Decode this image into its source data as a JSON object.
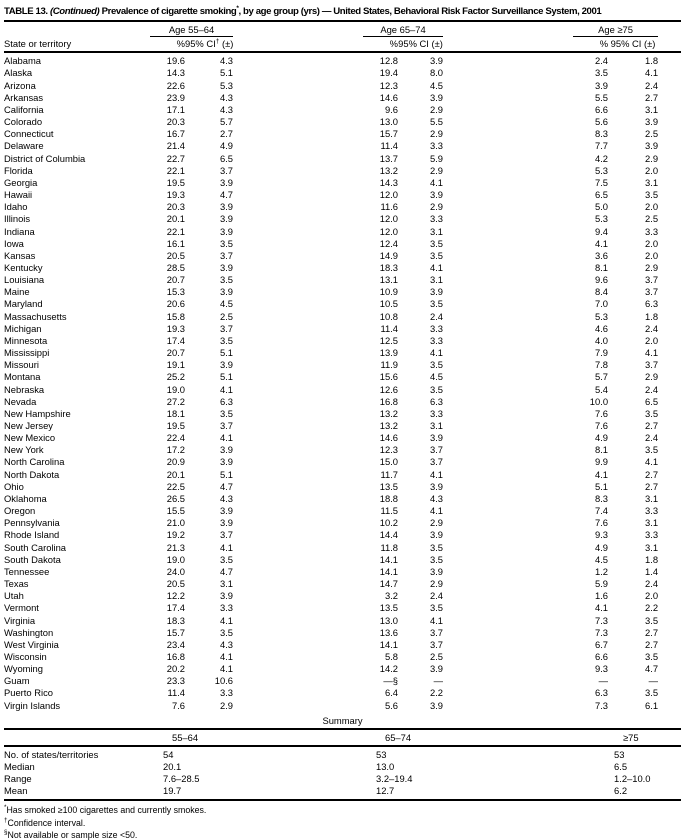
{
  "title": {
    "table_no": "TABLE 13. ",
    "continued": "(Continued)",
    "body_pre": " Prevalence of cigarette smoking",
    "asterisk": "*",
    "body_post": ", by age group (yrs) — United States, Behavioral Risk Factor Surveillance System, 2001"
  },
  "header": {
    "state_col": "State or territory",
    "pct": "%",
    "ci_pre": "95% CI",
    "ci_dagger": "†",
    "ci_post": " (±)",
    "ci_plain": "95% CI (±)",
    "groups": [
      "Age 55–64",
      "Age 65–74",
      "Age ≥75"
    ]
  },
  "rows": [
    {
      "state": "Alabama",
      "v": [
        "19.6",
        "4.3",
        "12.8",
        "3.9",
        "2.4",
        "1.8"
      ]
    },
    {
      "state": "Alaska",
      "v": [
        "14.3",
        "5.1",
        "19.4",
        "8.0",
        "3.5",
        "4.1"
      ]
    },
    {
      "state": "Arizona",
      "v": [
        "22.6",
        "5.3",
        "12.3",
        "4.5",
        "3.9",
        "2.4"
      ]
    },
    {
      "state": "Arkansas",
      "v": [
        "23.9",
        "4.3",
        "14.6",
        "3.9",
        "5.5",
        "2.7"
      ]
    },
    {
      "state": "California",
      "v": [
        "17.1",
        "4.3",
        "9.6",
        "2.9",
        "6.6",
        "3.1"
      ]
    },
    {
      "state": "Colorado",
      "v": [
        "20.3",
        "5.7",
        "13.0",
        "5.5",
        "5.6",
        "3.9"
      ]
    },
    {
      "state": "Connecticut",
      "v": [
        "16.7",
        "2.7",
        "15.7",
        "2.9",
        "8.3",
        "2.5"
      ]
    },
    {
      "state": "Delaware",
      "v": [
        "21.4",
        "4.9",
        "11.4",
        "3.3",
        "7.7",
        "3.9"
      ]
    },
    {
      "state": "District of Columbia",
      "v": [
        "22.7",
        "6.5",
        "13.7",
        "5.9",
        "4.2",
        "2.9"
      ]
    },
    {
      "state": "Florida",
      "v": [
        "22.1",
        "3.7",
        "13.2",
        "2.9",
        "5.3",
        "2.0"
      ]
    },
    {
      "state": "Georgia",
      "v": [
        "19.5",
        "3.9",
        "14.3",
        "4.1",
        "7.5",
        "3.1"
      ]
    },
    {
      "state": "Hawaii",
      "v": [
        "19.3",
        "4.7",
        "12.0",
        "3.9",
        "6.5",
        "3.5"
      ]
    },
    {
      "state": "Idaho",
      "v": [
        "20.3",
        "3.9",
        "11.6",
        "2.9",
        "5.0",
        "2.0"
      ]
    },
    {
      "state": "Illinois",
      "v": [
        "20.1",
        "3.9",
        "12.0",
        "3.3",
        "5.3",
        "2.5"
      ]
    },
    {
      "state": "Indiana",
      "v": [
        "22.1",
        "3.9",
        "12.0",
        "3.1",
        "9.4",
        "3.3"
      ]
    },
    {
      "state": "Iowa",
      "v": [
        "16.1",
        "3.5",
        "12.4",
        "3.5",
        "4.1",
        "2.0"
      ]
    },
    {
      "state": "Kansas",
      "v": [
        "20.5",
        "3.7",
        "14.9",
        "3.5",
        "3.6",
        "2.0"
      ]
    },
    {
      "state": "Kentucky",
      "v": [
        "28.5",
        "3.9",
        "18.3",
        "4.1",
        "8.1",
        "2.9"
      ]
    },
    {
      "state": "Louisiana",
      "v": [
        "20.7",
        "3.5",
        "13.1",
        "3.1",
        "9.6",
        "3.7"
      ]
    },
    {
      "state": "Maine",
      "v": [
        "15.3",
        "3.9",
        "10.9",
        "3.9",
        "8.4",
        "3.7"
      ]
    },
    {
      "state": "Maryland",
      "v": [
        "20.6",
        "4.5",
        "10.5",
        "3.5",
        "7.0",
        "6.3"
      ]
    },
    {
      "state": "Massachusetts",
      "v": [
        "15.8",
        "2.5",
        "10.8",
        "2.4",
        "5.3",
        "1.8"
      ]
    },
    {
      "state": "Michigan",
      "v": [
        "19.3",
        "3.7",
        "11.4",
        "3.3",
        "4.6",
        "2.4"
      ]
    },
    {
      "state": "Minnesota",
      "v": [
        "17.4",
        "3.5",
        "12.5",
        "3.3",
        "4.0",
        "2.0"
      ]
    },
    {
      "state": "Mississippi",
      "v": [
        "20.7",
        "5.1",
        "13.9",
        "4.1",
        "7.9",
        "4.1"
      ]
    },
    {
      "state": "Missouri",
      "v": [
        "19.1",
        "3.9",
        "11.9",
        "3.5",
        "7.8",
        "3.7"
      ]
    },
    {
      "state": "Montana",
      "v": [
        "25.2",
        "5.1",
        "15.6",
        "4.5",
        "5.7",
        "2.9"
      ]
    },
    {
      "state": "Nebraska",
      "v": [
        "19.0",
        "4.1",
        "12.6",
        "3.5",
        "5.4",
        "2.4"
      ]
    },
    {
      "state": "Nevada",
      "v": [
        "27.2",
        "6.3",
        "16.8",
        "6.3",
        "10.0",
        "6.5"
      ]
    },
    {
      "state": "New Hampshire",
      "v": [
        "18.1",
        "3.5",
        "13.2",
        "3.3",
        "7.6",
        "3.5"
      ]
    },
    {
      "state": "New Jersey",
      "v": [
        "19.5",
        "3.7",
        "13.2",
        "3.1",
        "7.6",
        "2.7"
      ]
    },
    {
      "state": "New Mexico",
      "v": [
        "22.4",
        "4.1",
        "14.6",
        "3.9",
        "4.9",
        "2.4"
      ]
    },
    {
      "state": "New York",
      "v": [
        "17.2",
        "3.9",
        "12.3",
        "3.7",
        "8.1",
        "3.5"
      ]
    },
    {
      "state": "North Carolina",
      "v": [
        "20.9",
        "3.9",
        "15.0",
        "3.7",
        "9.9",
        "4.1"
      ]
    },
    {
      "state": "North Dakota",
      "v": [
        "20.1",
        "5.1",
        "11.7",
        "4.1",
        "4.1",
        "2.7"
      ]
    },
    {
      "state": "Ohio",
      "v": [
        "22.5",
        "4.7",
        "13.5",
        "3.9",
        "5.1",
        "2.7"
      ]
    },
    {
      "state": "Oklahoma",
      "v": [
        "26.5",
        "4.3",
        "18.8",
        "4.3",
        "8.3",
        "3.1"
      ]
    },
    {
      "state": "Oregon",
      "v": [
        "15.5",
        "3.9",
        "11.5",
        "4.1",
        "7.4",
        "3.3"
      ]
    },
    {
      "state": "Pennsylvania",
      "v": [
        "21.0",
        "3.9",
        "10.2",
        "2.9",
        "7.6",
        "3.1"
      ]
    },
    {
      "state": "Rhode Island",
      "v": [
        "19.2",
        "3.7",
        "14.4",
        "3.9",
        "9.3",
        "3.3"
      ]
    },
    {
      "state": "South Carolina",
      "v": [
        "21.3",
        "4.1",
        "11.8",
        "3.5",
        "4.9",
        "3.1"
      ]
    },
    {
      "state": "South Dakota",
      "v": [
        "19.0",
        "3.5",
        "14.1",
        "3.5",
        "4.5",
        "1.8"
      ]
    },
    {
      "state": "Tennessee",
      "v": [
        "24.0",
        "4.7",
        "14.1",
        "3.9",
        "1.2",
        "1.4"
      ]
    },
    {
      "state": "Texas",
      "v": [
        "20.5",
        "3.1",
        "14.7",
        "2.9",
        "5.9",
        "2.4"
      ]
    },
    {
      "state": "Utah",
      "v": [
        "12.2",
        "3.9",
        "3.2",
        "2.4",
        "1.6",
        "2.0"
      ]
    },
    {
      "state": "Vermont",
      "v": [
        "17.4",
        "3.3",
        "13.5",
        "3.5",
        "4.1",
        "2.2"
      ]
    },
    {
      "state": "Virginia",
      "v": [
        "18.3",
        "4.1",
        "13.0",
        "4.1",
        "7.3",
        "3.5"
      ]
    },
    {
      "state": "Washington",
      "v": [
        "15.7",
        "3.5",
        "13.6",
        "3.7",
        "7.3",
        "2.7"
      ]
    },
    {
      "state": "West Virginia",
      "v": [
        "23.4",
        "4.3",
        "14.1",
        "3.7",
        "6.7",
        "2.7"
      ]
    },
    {
      "state": "Wisconsin",
      "v": [
        "16.8",
        "4.1",
        "5.8",
        "2.5",
        "6.6",
        "3.5"
      ]
    },
    {
      "state": "Wyoming",
      "v": [
        "20.2",
        "4.1",
        "14.2",
        "3.9",
        "9.3",
        "4.7"
      ]
    },
    {
      "state": "Guam",
      "v": [
        "23.3",
        "10.6",
        "—§",
        "—",
        "—",
        "—"
      ]
    },
    {
      "state": "Puerto Rico",
      "v": [
        "11.4",
        "3.3",
        "6.4",
        "2.2",
        "6.3",
        "3.5"
      ]
    },
    {
      "state": "Virgin Islands",
      "v": [
        "7.6",
        "2.9",
        "5.6",
        "3.9",
        "7.3",
        "6.1"
      ]
    }
  ],
  "summary": {
    "title": "Summary",
    "columns": [
      "55–64",
      "65–74",
      "≥75"
    ],
    "rows": [
      {
        "label": "No. of states/territories",
        "values": [
          "54",
          "53",
          "53"
        ]
      },
      {
        "label": "Median",
        "values": [
          "20.1",
          "13.0",
          "6.5"
        ]
      },
      {
        "label": "Range",
        "values": [
          "7.6–28.5",
          "3.2–19.4",
          "1.2–10.0"
        ]
      },
      {
        "label": "Mean",
        "values": [
          "19.7",
          "12.7",
          "6.2"
        ]
      }
    ]
  },
  "footnotes": [
    {
      "marker": "*",
      "text": "Has smoked ≥100 cigarettes and currently smokes."
    },
    {
      "marker": "†",
      "text": "Confidence interval."
    },
    {
      "marker": "§",
      "text": "Not available or sample size <50."
    }
  ]
}
